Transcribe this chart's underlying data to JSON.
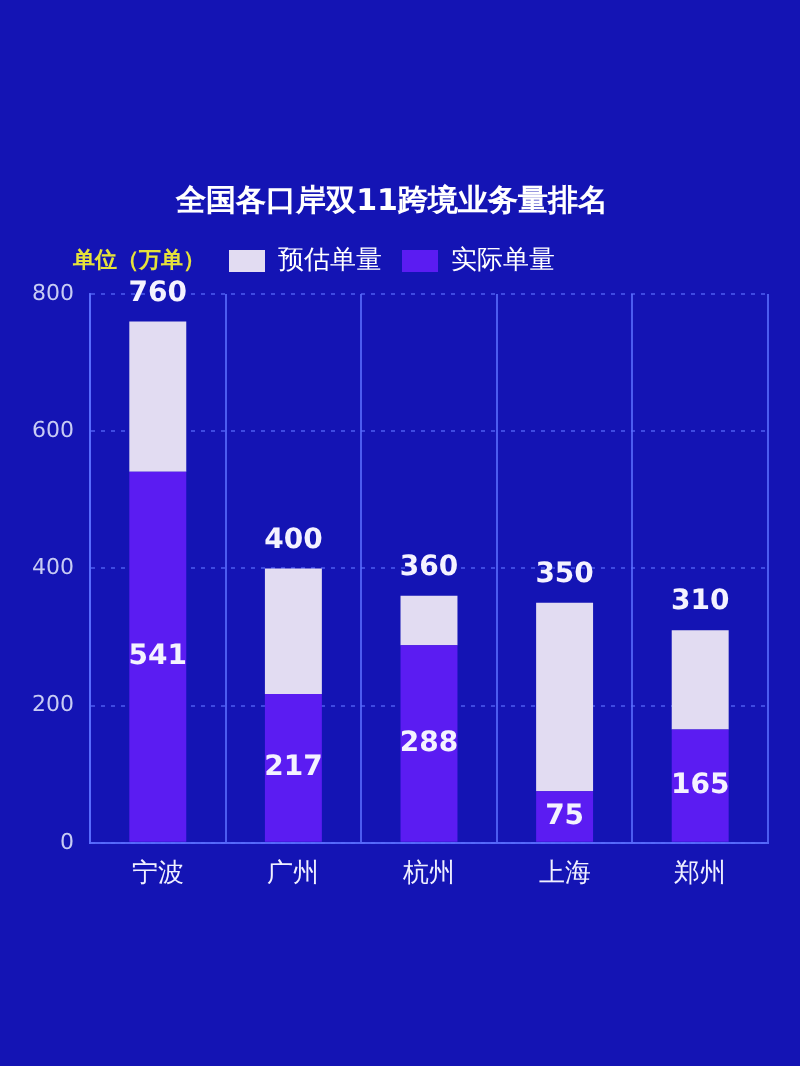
{
  "chart_data": {
    "type": "bar",
    "title": "全国各口岸双11跨境业务量排名",
    "ylabel": "单位（万单）",
    "categories": [
      "宁波",
      "广州",
      "杭州",
      "上海",
      "郑州"
    ],
    "stacked": true,
    "series": [
      {
        "name": "实际单量",
        "color": "#5b1cf2",
        "values": [
          541,
          217,
          288,
          75,
          165
        ],
        "value_labels": [
          "541",
          "217",
          "288",
          "75",
          "165"
        ]
      },
      {
        "name": "预估单量",
        "color": "#e2dcf2",
        "values": [
          219,
          183,
          72,
          275,
          145
        ]
      }
    ],
    "totals": [
      "760",
      "400",
      "360",
      "350",
      "310"
    ],
    "ylim": [
      0,
      800
    ],
    "yticks": [
      0,
      200,
      400,
      600,
      800
    ],
    "grid": true,
    "legend": "top"
  }
}
